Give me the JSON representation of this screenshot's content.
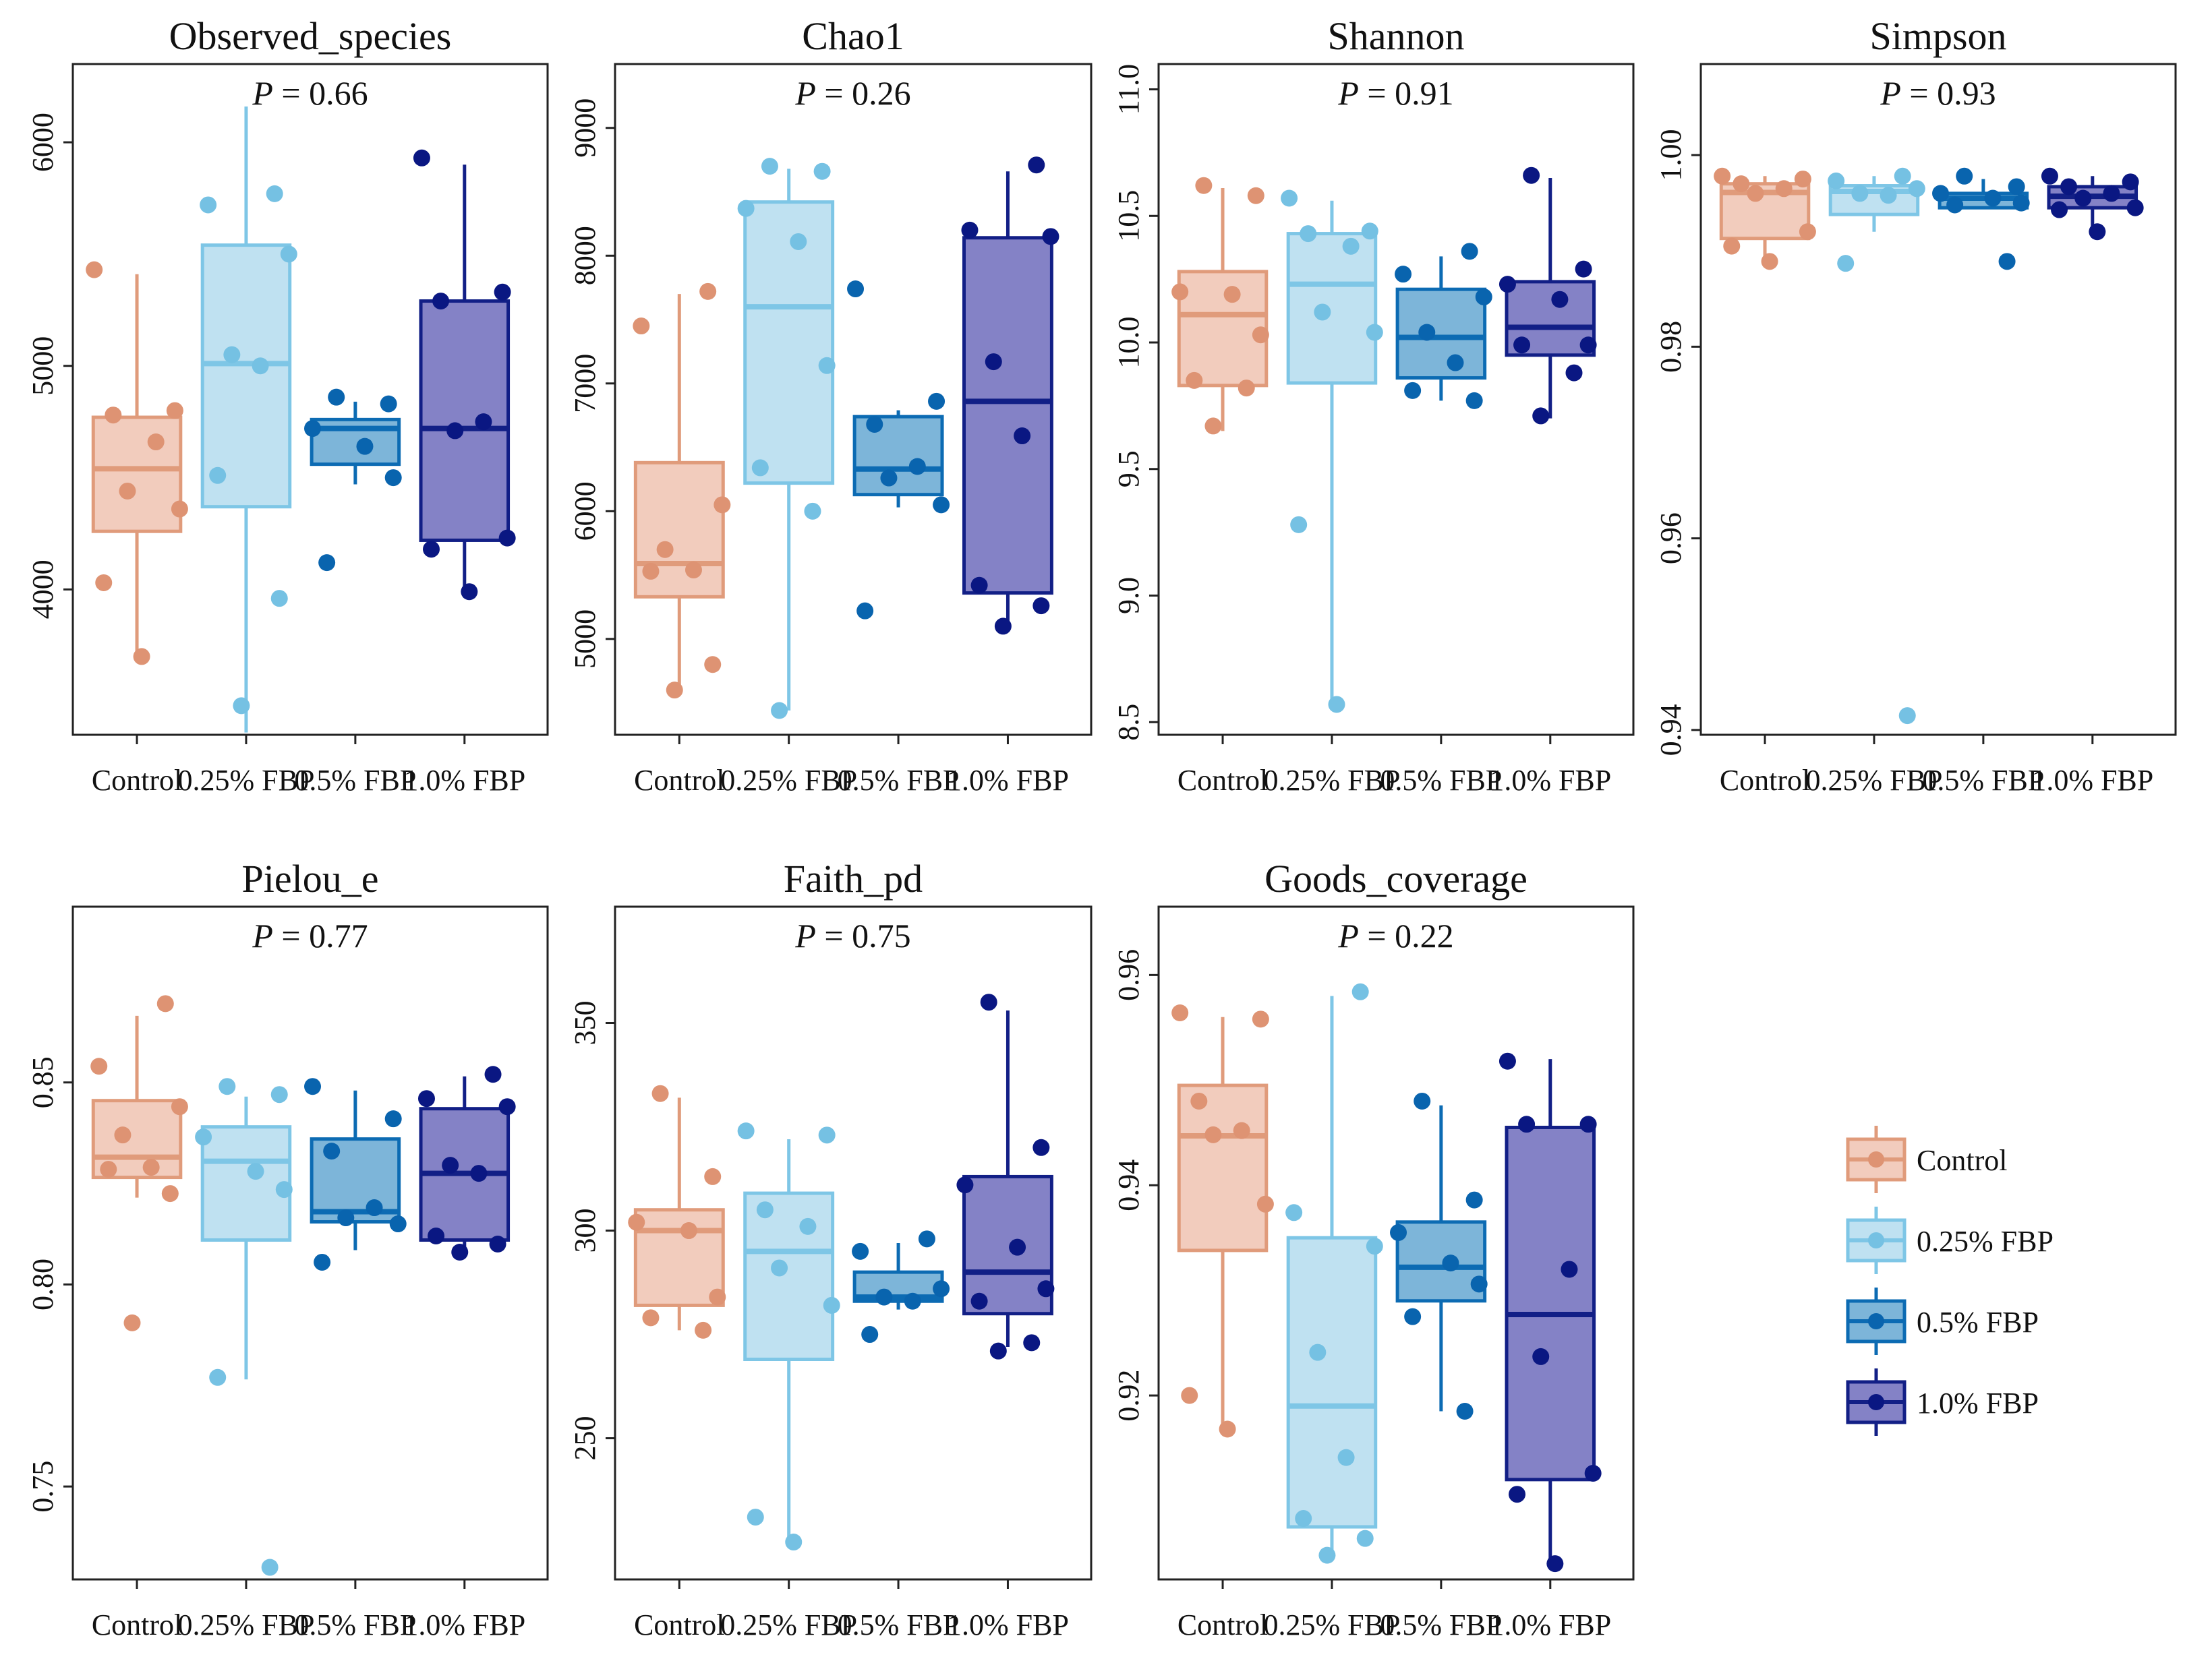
{
  "figure_title": "",
  "groups": [
    "Control",
    "0.25% FBP",
    "0.5% FBP",
    "1.0% FBP"
  ],
  "colors": {
    "Control": {
      "box": "#F2CCBD",
      "line": "#E09B7B",
      "point": "#DE9373"
    },
    "0.25% FBP": {
      "box": "#BFE1F1",
      "line": "#7EC6E6",
      "point": "#75C1E3"
    },
    "0.5% FBP": {
      "box": "#7DB5D9",
      "line": "#0C6BB3",
      "point": "#0964AE"
    },
    "1.0% FBP": {
      "box": "#8482C6",
      "line": "#121F86",
      "point": "#0A1782"
    }
  },
  "legend": {
    "title": "",
    "items": [
      "Control",
      "0.25% FBP",
      "0.5% FBP",
      "1.0% FBP"
    ]
  },
  "chart_data": [
    {
      "type": "boxplot",
      "title": "Observed_species",
      "p_label": "P",
      "p_value": "= 0.66",
      "ylim": [
        3350,
        6350
      ],
      "yticks": [
        4000,
        5000,
        6000
      ],
      "ytick_labels": [
        "4000",
        "5000",
        "6000"
      ],
      "categories": [
        "Control",
        "0.25% FBP",
        "0.5% FBP",
        "1.0% FBP"
      ],
      "boxes": [
        {
          "q1": 4260,
          "median": 4540,
          "q3": 4770,
          "whisker_low": 3700,
          "whisker_high": 5410
        },
        {
          "q1": 4370,
          "median": 5010,
          "q3": 5540,
          "whisker_low": 3360,
          "whisker_high": 6160
        },
        {
          "q1": 4560,
          "median": 4720,
          "q3": 4760,
          "whisker_low": 4470,
          "whisker_high": 4840
        },
        {
          "q1": 4220,
          "median": 4720,
          "q3": 5290,
          "whisker_low": 3990,
          "whisker_high": 5900
        }
      ],
      "points": [
        [
          5430,
          4800,
          4780,
          4660,
          4440,
          4360,
          4030,
          3700
        ],
        [
          5770,
          5720,
          5500,
          5050,
          5000,
          4510,
          3960,
          3480
        ],
        [
          4860,
          4830,
          4720,
          4640,
          4500,
          4120
        ],
        [
          5930,
          5330,
          5290,
          4750,
          4710,
          4230,
          4180,
          3990
        ]
      ]
    },
    {
      "type": "boxplot",
      "title": "Chao1",
      "p_label": "P",
      "p_value": "= 0.26",
      "ylim": [
        4250,
        9500
      ],
      "yticks": [
        5000,
        6000,
        7000,
        8000,
        9000
      ],
      "ytick_labels": [
        "5000",
        "6000",
        "7000",
        "8000",
        "9000"
      ],
      "categories": [
        "Control",
        "0.25% FBP",
        "0.5% FBP",
        "1.0% FBP"
      ],
      "boxes": [
        {
          "q1": 5330,
          "median": 5590,
          "q3": 6380,
          "whisker_low": 4600,
          "whisker_high": 7700
        },
        {
          "q1": 6220,
          "median": 7600,
          "q3": 8420,
          "whisker_low": 4440,
          "whisker_high": 8680
        },
        {
          "q1": 6130,
          "median": 6330,
          "q3": 6740,
          "whisker_low": 6030,
          "whisker_high": 6790
        },
        {
          "q1": 5360,
          "median": 6860,
          "q3": 8140,
          "whisker_low": 5100,
          "whisker_high": 8660
        }
      ],
      "points": [
        [
          7720,
          7450,
          6050,
          5700,
          5540,
          5530,
          4800,
          4600
        ],
        [
          8700,
          8660,
          8370,
          8110,
          7140,
          6340,
          6000,
          4440
        ],
        [
          7740,
          6860,
          6680,
          6350,
          6260,
          6050,
          5220
        ],
        [
          8710,
          8200,
          8150,
          7170,
          6590,
          5420,
          5260,
          5100
        ]
      ]
    },
    {
      "type": "boxplot",
      "title": "Shannon",
      "p_label": "P",
      "p_value": "= 0.91",
      "ylim": [
        8.45,
        11.1
      ],
      "yticks": [
        8.5,
        9.0,
        9.5,
        10.0,
        10.5,
        11.0
      ],
      "ytick_labels": [
        "8.5",
        "9.0",
        "9.5",
        "10.0",
        "10.5",
        "11.0"
      ],
      "categories": [
        "Control",
        "0.25% FBP",
        "0.5% FBP",
        "1.0% FBP"
      ],
      "boxes": [
        {
          "q1": 9.83,
          "median": 10.11,
          "q3": 10.28,
          "whisker_low": 9.65,
          "whisker_high": 10.61
        },
        {
          "q1": 9.84,
          "median": 10.23,
          "q3": 10.43,
          "whisker_low": 8.57,
          "whisker_high": 10.56
        },
        {
          "q1": 9.86,
          "median": 10.02,
          "q3": 10.21,
          "whisker_low": 9.77,
          "whisker_high": 10.34
        },
        {
          "q1": 9.95,
          "median": 10.06,
          "q3": 10.24,
          "whisker_low": 9.7,
          "whisker_high": 10.65
        }
      ],
      "points": [
        [
          10.62,
          10.58,
          10.2,
          10.19,
          10.03,
          9.85,
          9.82,
          9.67
        ],
        [
          10.57,
          10.44,
          10.43,
          10.38,
          10.12,
          10.04,
          9.28,
          8.57
        ],
        [
          10.36,
          10.27,
          10.18,
          10.04,
          9.92,
          9.81,
          9.77
        ],
        [
          10.66,
          10.29,
          10.23,
          10.17,
          9.99,
          9.99,
          9.88,
          9.71
        ]
      ]
    },
    {
      "type": "boxplot",
      "title": "Simpson",
      "p_label": "P",
      "p_value": "= 0.93",
      "ylim": [
        0.9395,
        1.0095
      ],
      "yticks": [
        0.94,
        0.96,
        0.98,
        1.0
      ],
      "ytick_labels": [
        "0.94",
        "0.96",
        "0.98",
        "1.00"
      ],
      "categories": [
        "Control",
        "0.25% FBP",
        "0.5% FBP",
        "1.0% FBP"
      ],
      "boxes": [
        {
          "q1": 0.9913,
          "median": 0.9961,
          "q3": 0.997,
          "whisker_low": 0.9889,
          "whisker_high": 0.9978
        },
        {
          "q1": 0.9938,
          "median": 0.9962,
          "q3": 0.9968,
          "whisker_low": 0.992,
          "whisker_high": 0.9978
        },
        {
          "q1": 0.9945,
          "median": 0.9955,
          "q3": 0.996,
          "whisker_low": 0.9944,
          "whisker_high": 0.9975
        },
        {
          "q1": 0.9945,
          "median": 0.9957,
          "q3": 0.9967,
          "whisker_low": 0.992,
          "whisker_high": 0.9978
        }
      ],
      "points": [
        [
          0.9978,
          0.9975,
          0.997,
          0.9965,
          0.996,
          0.992,
          0.9905,
          0.9889
        ],
        [
          0.9978,
          0.9973,
          0.9965,
          0.996,
          0.9958,
          0.9887,
          0.9415
        ],
        [
          0.9978,
          0.9967,
          0.996,
          0.9955,
          0.995,
          0.9948,
          0.9889
        ],
        [
          0.9978,
          0.9972,
          0.9967,
          0.996,
          0.9955,
          0.9945,
          0.9943,
          0.992
        ]
      ]
    },
    {
      "type": "boxplot",
      "title": "Pielou_e",
      "p_label": "P",
      "p_value": "= 0.77",
      "ylim": [
        0.727,
        0.8935
      ],
      "yticks": [
        0.75,
        0.8,
        0.85
      ],
      "ytick_labels": [
        "0.75",
        "0.80",
        "0.85"
      ],
      "categories": [
        "Control",
        "0.25% FBP",
        "0.5% FBP",
        "1.0% FBP"
      ],
      "boxes": [
        {
          "q1": 0.8265,
          "median": 0.8315,
          "q3": 0.8455,
          "whisker_low": 0.8215,
          "whisker_high": 0.8665
        },
        {
          "q1": 0.811,
          "median": 0.8305,
          "q3": 0.839,
          "whisker_low": 0.7765,
          "whisker_high": 0.8465
        },
        {
          "q1": 0.8155,
          "median": 0.818,
          "q3": 0.836,
          "whisker_low": 0.8085,
          "whisker_high": 0.848
        },
        {
          "q1": 0.811,
          "median": 0.8275,
          "q3": 0.8435,
          "whisker_low": 0.809,
          "whisker_high": 0.8515
        }
      ],
      "points": [
        [
          0.8695,
          0.854,
          0.844,
          0.837,
          0.829,
          0.8285,
          0.8225,
          0.7905
        ],
        [
          0.849,
          0.847,
          0.8365,
          0.828,
          0.8235,
          0.777,
          0.73
        ],
        [
          0.849,
          0.841,
          0.833,
          0.819,
          0.8165,
          0.815,
          0.8055
        ],
        [
          0.852,
          0.846,
          0.844,
          0.8295,
          0.8275,
          0.812,
          0.81,
          0.808
        ]
      ]
    },
    {
      "type": "boxplot",
      "title": "Faith_pd",
      "p_label": "P",
      "p_value": "= 0.75",
      "ylim": [
        216,
        378
      ],
      "yticks": [
        250,
        300,
        350
      ],
      "ytick_labels": [
        "250",
        "300",
        "350"
      ],
      "categories": [
        "Control",
        "0.25% FBP",
        "0.5% FBP",
        "1.0% FBP"
      ],
      "boxes": [
        {
          "q1": 282,
          "median": 300,
          "q3": 305,
          "whisker_low": 276,
          "whisker_high": 332
        },
        {
          "q1": 269,
          "median": 295,
          "q3": 309,
          "whisker_low": 226,
          "whisker_high": 322
        },
        {
          "q1": 283,
          "median": 284,
          "q3": 290,
          "whisker_low": 281,
          "whisker_high": 297
        },
        {
          "q1": 280,
          "median": 290,
          "q3": 313,
          "whisker_low": 272,
          "whisker_high": 353
        }
      ],
      "points": [
        [
          333,
          313,
          302,
          300,
          284,
          279,
          276
        ],
        [
          324,
          323,
          305,
          301,
          291,
          282,
          231,
          225
        ],
        [
          298,
          295,
          286,
          284,
          283,
          275
        ],
        [
          355,
          320,
          311,
          296,
          286,
          283,
          273,
          271
        ]
      ]
    },
    {
      "type": "boxplot",
      "title": "Goods_coverage",
      "p_label": "P",
      "p_value": "= 0.22",
      "ylim": [
        0.9025,
        0.9665
      ],
      "yticks": [
        0.92,
        0.94,
        0.96
      ],
      "ytick_labels": [
        "0.92",
        "0.94",
        "0.96"
      ],
      "categories": [
        "Control",
        "0.25% FBP",
        "0.5% FBP",
        "1.0% FBP"
      ],
      "boxes": [
        {
          "q1": 0.9338,
          "median": 0.9447,
          "q3": 0.9495,
          "whisker_low": 0.9168,
          "whisker_high": 0.956
        },
        {
          "q1": 0.9075,
          "median": 0.919,
          "q3": 0.935,
          "whisker_low": 0.9048,
          "whisker_high": 0.958
        },
        {
          "q1": 0.929,
          "median": 0.9322,
          "q3": 0.9365,
          "whisker_low": 0.9185,
          "whisker_high": 0.9476
        },
        {
          "q1": 0.912,
          "median": 0.9277,
          "q3": 0.9455,
          "whisker_low": 0.904,
          "whisker_high": 0.952
        }
      ],
      "points": [
        [
          0.9564,
          0.9558,
          0.948,
          0.9452,
          0.9448,
          0.9382,
          0.92,
          0.9168
        ],
        [
          0.9584,
          0.9374,
          0.9342,
          0.9241,
          0.9141,
          0.9083,
          0.9064,
          0.9048
        ],
        [
          0.948,
          0.9386,
          0.9355,
          0.9326,
          0.9306,
          0.9275,
          0.9185
        ],
        [
          0.9518,
          0.9458,
          0.9458,
          0.932,
          0.9237,
          0.9126,
          0.9106,
          0.904
        ]
      ]
    }
  ]
}
